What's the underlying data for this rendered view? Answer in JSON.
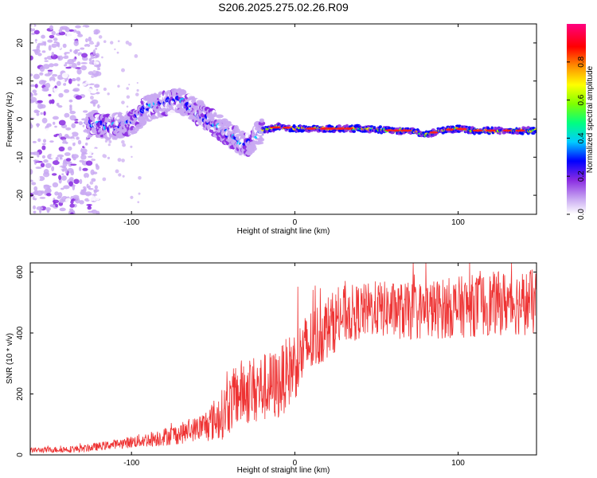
{
  "title": "S206.2025.275.02.26.R09",
  "chart_data": [
    {
      "type": "heatmap",
      "name": "spectrogram",
      "xlabel": "Height of straight line (km)",
      "ylabel": "Frequency (Hz)",
      "xlim": [
        -162,
        148
      ],
      "ylim": [
        -25,
        25
      ],
      "xticks": [
        -100,
        0,
        100
      ],
      "yticks": [
        -20,
        -10,
        0,
        10,
        20
      ],
      "colorbar": {
        "label": "Normalized spectral amplitude",
        "range": [
          0,
          1
        ],
        "ticks": [
          0.0,
          0.2,
          0.4,
          0.6,
          0.8
        ],
        "colormap": [
          "#ffffff",
          "#c9a9f2",
          "#8a2be2",
          "#0000ff",
          "#00ccff",
          "#00ff80",
          "#7fff00",
          "#ffff00",
          "#ff8c00",
          "#ff0000",
          "#ff0080"
        ]
      },
      "ridge": [
        {
          "x": -125,
          "f": -1.5
        },
        {
          "x": -110,
          "f": -2
        },
        {
          "x": -100,
          "f": -1
        },
        {
          "x": -90,
          "f": 3
        },
        {
          "x": -80,
          "f": 4
        },
        {
          "x": -70,
          "f": 5
        },
        {
          "x": -60,
          "f": 2
        },
        {
          "x": -50,
          "f": -1
        },
        {
          "x": -40,
          "f": -4
        },
        {
          "x": -30,
          "f": -7
        },
        {
          "x": -20,
          "f": -3
        },
        {
          "x": -10,
          "f": -2
        },
        {
          "x": 0,
          "f": -2.5
        },
        {
          "x": 20,
          "f": -2.5
        },
        {
          "x": 40,
          "f": -2.5
        },
        {
          "x": 60,
          "f": -3
        },
        {
          "x": 70,
          "f": -3
        },
        {
          "x": 80,
          "f": -4
        },
        {
          "x": 90,
          "f": -3
        },
        {
          "x": 100,
          "f": -2.5
        },
        {
          "x": 110,
          "f": -3
        },
        {
          "x": 130,
          "f": -3
        },
        {
          "x": 148,
          "f": -3
        }
      ]
    },
    {
      "type": "line",
      "name": "snr",
      "xlabel": "Height of straight line (km)",
      "ylabel": "SNR (10 * v/v)",
      "xlim": [
        -162,
        148
      ],
      "ylim": [
        0,
        630
      ],
      "xticks": [
        -100,
        0,
        100
      ],
      "yticks": [
        0,
        200,
        400,
        600
      ],
      "color": "#ee3333",
      "trend": [
        {
          "x": -162,
          "y": 15
        },
        {
          "x": -130,
          "y": 20
        },
        {
          "x": -110,
          "y": 35
        },
        {
          "x": -90,
          "y": 50
        },
        {
          "x": -70,
          "y": 70
        },
        {
          "x": -55,
          "y": 95
        },
        {
          "x": -45,
          "y": 130
        },
        {
          "x": -35,
          "y": 200
        },
        {
          "x": -25,
          "y": 215
        },
        {
          "x": -10,
          "y": 230
        },
        {
          "x": 0,
          "y": 300
        },
        {
          "x": 10,
          "y": 370
        },
        {
          "x": 20,
          "y": 420
        },
        {
          "x": 30,
          "y": 460
        },
        {
          "x": 50,
          "y": 480
        },
        {
          "x": 70,
          "y": 470
        },
        {
          "x": 90,
          "y": 480
        },
        {
          "x": 110,
          "y": 490
        },
        {
          "x": 130,
          "y": 500
        },
        {
          "x": 148,
          "y": 500
        }
      ],
      "noise_amplitude": [
        {
          "x": -162,
          "a": 8
        },
        {
          "x": -110,
          "a": 15
        },
        {
          "x": -60,
          "a": 40
        },
        {
          "x": -35,
          "a": 110
        },
        {
          "x": 0,
          "a": 120
        },
        {
          "x": 40,
          "a": 90
        },
        {
          "x": 148,
          "a": 110
        }
      ]
    }
  ]
}
